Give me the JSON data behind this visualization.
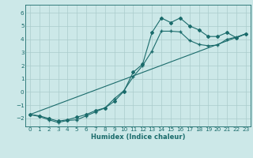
{
  "title": "",
  "xlabel": "Humidex (Indice chaleur)",
  "bg_color": "#cce8e8",
  "grid_color": "#aacccc",
  "line_color": "#1a6b6b",
  "xlim": [
    -0.5,
    23.5
  ],
  "ylim": [
    -2.6,
    6.6
  ],
  "yticks": [
    -2,
    -1,
    0,
    1,
    2,
    3,
    4,
    5,
    6
  ],
  "xticks": [
    0,
    1,
    2,
    3,
    4,
    5,
    6,
    7,
    8,
    9,
    10,
    11,
    12,
    13,
    14,
    15,
    16,
    17,
    18,
    19,
    20,
    21,
    22,
    23
  ],
  "series1_x": [
    0,
    1,
    2,
    3,
    4,
    5,
    6,
    7,
    8,
    9,
    10,
    11,
    12,
    13,
    14,
    15,
    16,
    17,
    18,
    19,
    20,
    21,
    22,
    23
  ],
  "series1_y": [
    -1.7,
    -1.8,
    -2.0,
    -2.2,
    -2.1,
    -1.9,
    -1.7,
    -1.4,
    -1.2,
    -0.7,
    0.05,
    1.5,
    2.1,
    4.5,
    5.6,
    5.25,
    5.6,
    5.0,
    4.7,
    4.2,
    4.2,
    4.5,
    4.1,
    4.4
  ],
  "series2_x": [
    0,
    1,
    2,
    3,
    4,
    5,
    6,
    7,
    8,
    9,
    10,
    11,
    12,
    13,
    14,
    15,
    16,
    17,
    18,
    19,
    20,
    21,
    22,
    23
  ],
  "series2_y": [
    -1.7,
    -1.85,
    -2.1,
    -2.3,
    -2.15,
    -2.1,
    -1.8,
    -1.5,
    -1.2,
    -0.5,
    0.1,
    1.15,
    2.0,
    3.1,
    4.6,
    4.6,
    4.55,
    3.9,
    3.6,
    3.5,
    3.55,
    4.0,
    4.15,
    4.4
  ],
  "series3_x": [
    0,
    23
  ],
  "series3_y": [
    -1.7,
    4.4
  ],
  "marker1": "D",
  "marker2": "+",
  "markersize1": 2.0,
  "markersize2": 3.5,
  "linewidth": 0.8,
  "xlabel_fontsize": 6.0,
  "tick_fontsize": 5.2
}
